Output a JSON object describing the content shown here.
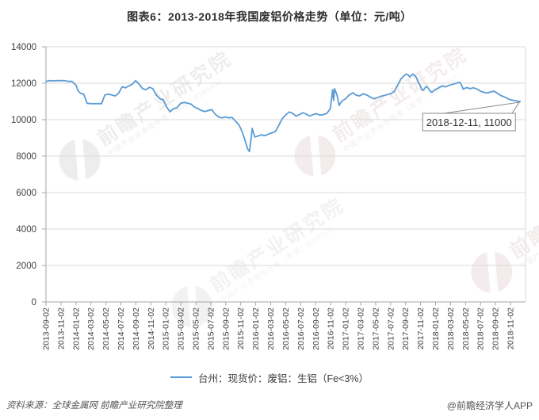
{
  "title": "图表6：2013-2018年我国废铝价格走势（单位：元/吨）",
  "footer": {
    "source": "资料来源：全球金属网  前瞻产业研究院整理",
    "credit": "@前瞻经济学人APP"
  },
  "watermark": {
    "brand": "前瞻产业研究院",
    "sub": "中国产业咨询领导者（股票：839599）"
  },
  "colors": {
    "line": "#5B9BD5",
    "grid": "#dadada",
    "axis": "#a6a6a6",
    "tick_text": "#404040",
    "annotation_border": "#8a8a8a"
  },
  "chart_data": {
    "type": "line",
    "title": "图表6：2013-2018年我国废铝价格走势（单位：元/吨）",
    "ylabel": "元/吨",
    "ylim": [
      0,
      14000
    ],
    "ytick_step": 2000,
    "grid": true,
    "legend_position": "bottom",
    "x_tick_labels": [
      "2013-09-02",
      "2013-11-02",
      "2014-01-02",
      "2014-03-02",
      "2014-05-02",
      "2014-07-02",
      "2014-09-02",
      "2014-11-02",
      "2015-01-02",
      "2015-03-02",
      "2015-05-02",
      "2015-07-02",
      "2015-09-02",
      "2015-11-02",
      "2016-01-02",
      "2016-03-02",
      "2016-05-02",
      "2016-07-02",
      "2016-09-02",
      "2016-11-02",
      "2017-01-02",
      "2017-03-02",
      "2017-05-02",
      "2017-07-02",
      "2017-09-02",
      "2017-11-02",
      "2018-01-02",
      "2018-03-02",
      "2018-05-02",
      "2018-07-02",
      "2018-09-02",
      "2018-11-02"
    ],
    "annotation": {
      "x": "2018-12-11",
      "y": 11000,
      "label": "2018-12-11, 11000"
    },
    "series": [
      {
        "name": "台州：现货价：废铝：生铝（Fe<3%）",
        "color": "#5B9BD5",
        "points": [
          [
            "2013-09-02",
            12100
          ],
          [
            "2013-09-16",
            12150
          ],
          [
            "2013-10-01",
            12120
          ],
          [
            "2013-10-15",
            12150
          ],
          [
            "2013-11-01",
            12140
          ],
          [
            "2013-11-15",
            12150
          ],
          [
            "2013-12-02",
            12100
          ],
          [
            "2013-12-16",
            12100
          ],
          [
            "2014-01-02",
            11900
          ],
          [
            "2014-01-10",
            11600
          ],
          [
            "2014-01-20",
            11450
          ],
          [
            "2014-02-03",
            11400
          ],
          [
            "2014-02-17",
            10900
          ],
          [
            "2014-03-03",
            10880
          ],
          [
            "2014-03-17",
            10880
          ],
          [
            "2014-04-01",
            10880
          ],
          [
            "2014-04-15",
            10880
          ],
          [
            "2014-04-28",
            11350
          ],
          [
            "2014-05-12",
            11400
          ],
          [
            "2014-05-26",
            11350
          ],
          [
            "2014-06-09",
            11300
          ],
          [
            "2014-06-23",
            11450
          ],
          [
            "2014-07-07",
            11800
          ],
          [
            "2014-07-21",
            11750
          ],
          [
            "2014-08-04",
            11850
          ],
          [
            "2014-08-18",
            11950
          ],
          [
            "2014-09-01",
            12150
          ],
          [
            "2014-09-15",
            11950
          ],
          [
            "2014-09-29",
            11700
          ],
          [
            "2014-10-13",
            11650
          ],
          [
            "2014-10-27",
            11780
          ],
          [
            "2014-11-10",
            11700
          ],
          [
            "2014-11-24",
            11350
          ],
          [
            "2014-12-08",
            11150
          ],
          [
            "2014-12-22",
            11100
          ],
          [
            "2015-01-05",
            10700
          ],
          [
            "2015-01-19",
            10430
          ],
          [
            "2015-02-02",
            10600
          ],
          [
            "2015-02-16",
            10650
          ],
          [
            "2015-03-02",
            10900
          ],
          [
            "2015-03-16",
            10950
          ],
          [
            "2015-03-30",
            10900
          ],
          [
            "2015-04-13",
            10850
          ],
          [
            "2015-04-27",
            10700
          ],
          [
            "2015-05-11",
            10600
          ],
          [
            "2015-05-25",
            10500
          ],
          [
            "2015-06-08",
            10450
          ],
          [
            "2015-06-22",
            10500
          ],
          [
            "2015-07-06",
            10550
          ],
          [
            "2015-07-20",
            10300
          ],
          [
            "2015-08-03",
            10150
          ],
          [
            "2015-08-17",
            10100
          ],
          [
            "2015-08-31",
            10150
          ],
          [
            "2015-09-14",
            10100
          ],
          [
            "2015-09-28",
            10120
          ],
          [
            "2015-10-12",
            9900
          ],
          [
            "2015-10-26",
            9700
          ],
          [
            "2015-11-09",
            9300
          ],
          [
            "2015-11-23",
            8700
          ],
          [
            "2015-11-30",
            8400
          ],
          [
            "2015-12-07",
            8250
          ],
          [
            "2015-12-14",
            9000
          ],
          [
            "2015-12-18",
            9520
          ],
          [
            "2015-12-28",
            9050
          ],
          [
            "2016-01-11",
            9100
          ],
          [
            "2016-01-25",
            9170
          ],
          [
            "2016-02-08",
            9120
          ],
          [
            "2016-02-22",
            9200
          ],
          [
            "2016-03-07",
            9280
          ],
          [
            "2016-03-21",
            9350
          ],
          [
            "2016-04-05",
            9700
          ],
          [
            "2016-04-18",
            10050
          ],
          [
            "2016-05-02",
            10260
          ],
          [
            "2016-05-16",
            10420
          ],
          [
            "2016-05-30",
            10350
          ],
          [
            "2016-06-13",
            10200
          ],
          [
            "2016-06-27",
            10280
          ],
          [
            "2016-07-11",
            10380
          ],
          [
            "2016-07-25",
            10300
          ],
          [
            "2016-08-08",
            10200
          ],
          [
            "2016-08-22",
            10280
          ],
          [
            "2016-09-05",
            10330
          ],
          [
            "2016-09-19",
            10250
          ],
          [
            "2016-10-03",
            10280
          ],
          [
            "2016-10-17",
            10350
          ],
          [
            "2016-10-31",
            10600
          ],
          [
            "2016-11-07",
            11300
          ],
          [
            "2016-11-10",
            11650
          ],
          [
            "2016-11-14",
            11050
          ],
          [
            "2016-11-18",
            11700
          ],
          [
            "2016-11-28",
            11350
          ],
          [
            "2016-12-06",
            10780
          ],
          [
            "2016-12-13",
            10950
          ],
          [
            "2016-12-20",
            11050
          ],
          [
            "2017-01-02",
            11150
          ],
          [
            "2017-01-16",
            11350
          ],
          [
            "2017-02-01",
            11480
          ],
          [
            "2017-02-13",
            11350
          ],
          [
            "2017-02-27",
            11300
          ],
          [
            "2017-03-13",
            11420
          ],
          [
            "2017-03-27",
            11350
          ],
          [
            "2017-04-10",
            11250
          ],
          [
            "2017-04-24",
            11150
          ],
          [
            "2017-05-08",
            11200
          ],
          [
            "2017-05-22",
            11280
          ],
          [
            "2017-06-05",
            11320
          ],
          [
            "2017-06-19",
            11380
          ],
          [
            "2017-07-03",
            11420
          ],
          [
            "2017-07-17",
            11550
          ],
          [
            "2017-07-31",
            11900
          ],
          [
            "2017-08-14",
            12250
          ],
          [
            "2017-08-28",
            12420
          ],
          [
            "2017-09-04",
            12500
          ],
          [
            "2017-09-11",
            12480
          ],
          [
            "2017-09-18",
            12350
          ],
          [
            "2017-09-25",
            12420
          ],
          [
            "2017-10-02",
            12500
          ],
          [
            "2017-10-09",
            12420
          ],
          [
            "2017-10-16",
            12300
          ],
          [
            "2017-10-23",
            12050
          ],
          [
            "2017-10-30",
            11900
          ],
          [
            "2017-11-06",
            11680
          ],
          [
            "2017-11-13",
            11600
          ],
          [
            "2017-11-20",
            11750
          ],
          [
            "2017-11-27",
            11820
          ],
          [
            "2017-12-04",
            11700
          ],
          [
            "2017-12-11",
            11560
          ],
          [
            "2017-12-18",
            11500
          ],
          [
            "2017-12-26",
            11600
          ],
          [
            "2018-01-02",
            11650
          ],
          [
            "2018-01-15",
            11750
          ],
          [
            "2018-01-29",
            11850
          ],
          [
            "2018-02-12",
            11800
          ],
          [
            "2018-02-26",
            11880
          ],
          [
            "2018-03-12",
            11950
          ],
          [
            "2018-03-26",
            12000
          ],
          [
            "2018-04-09",
            12050
          ],
          [
            "2018-04-16",
            11900
          ],
          [
            "2018-04-23",
            11680
          ],
          [
            "2018-05-07",
            11760
          ],
          [
            "2018-05-21",
            11700
          ],
          [
            "2018-06-04",
            11750
          ],
          [
            "2018-06-18",
            11680
          ],
          [
            "2018-07-02",
            11560
          ],
          [
            "2018-07-16",
            11500
          ],
          [
            "2018-07-30",
            11460
          ],
          [
            "2018-08-13",
            11520
          ],
          [
            "2018-08-27",
            11560
          ],
          [
            "2018-09-10",
            11450
          ],
          [
            "2018-09-24",
            11320
          ],
          [
            "2018-10-08",
            11250
          ],
          [
            "2018-10-22",
            11150
          ],
          [
            "2018-11-05",
            11080
          ],
          [
            "2018-11-19",
            11050
          ],
          [
            "2018-12-03",
            11010
          ],
          [
            "2018-12-11",
            11000
          ]
        ]
      }
    ]
  }
}
